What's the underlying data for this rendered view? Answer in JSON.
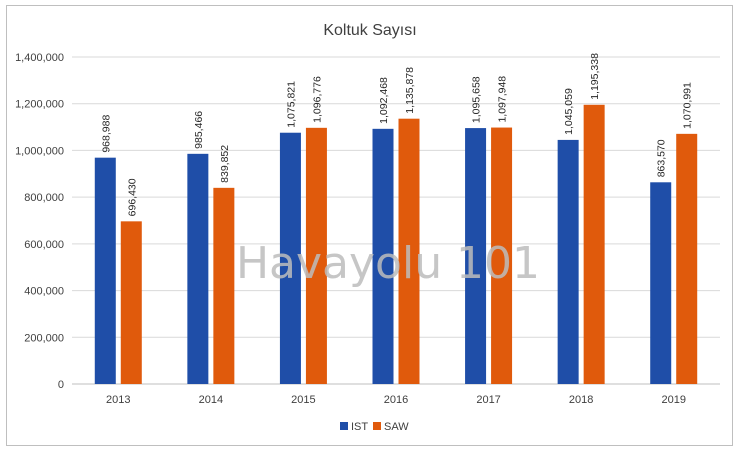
{
  "chart_data": {
    "type": "bar",
    "title": "Koltuk Sayısı",
    "watermark": "Havayolu 101",
    "categories": [
      "2013",
      "2014",
      "2015",
      "2016",
      "2017",
      "2018",
      "2019"
    ],
    "series": [
      {
        "name": "IST",
        "color": "#1f4ea8",
        "values": [
          968988,
          985466,
          1075821,
          1092468,
          1095658,
          1045059,
          863570
        ],
        "labels": [
          "968,988",
          "985,466",
          "1,075,821",
          "1,092,468",
          "1,095,658",
          "1,045,059",
          "863,570"
        ]
      },
      {
        "name": "SAW",
        "color": "#e05a0c",
        "values": [
          696430,
          839852,
          1096776,
          1135878,
          1097948,
          1195338,
          1070991
        ],
        "labels": [
          "696,430",
          "839,852",
          "1,096,776",
          "1,135,878",
          "1,097,948",
          "1,195,338",
          "1,070,991"
        ]
      }
    ],
    "ylim": [
      0,
      1400000
    ],
    "yticks": [
      0,
      200000,
      400000,
      600000,
      800000,
      1000000,
      1200000,
      1400000
    ],
    "ytick_labels": [
      "0",
      "200,000",
      "400,000",
      "600,000",
      "800,000",
      "1,000,000",
      "1,200,000",
      "1,400,000"
    ],
    "grid": true,
    "legend_position": "bottom"
  }
}
